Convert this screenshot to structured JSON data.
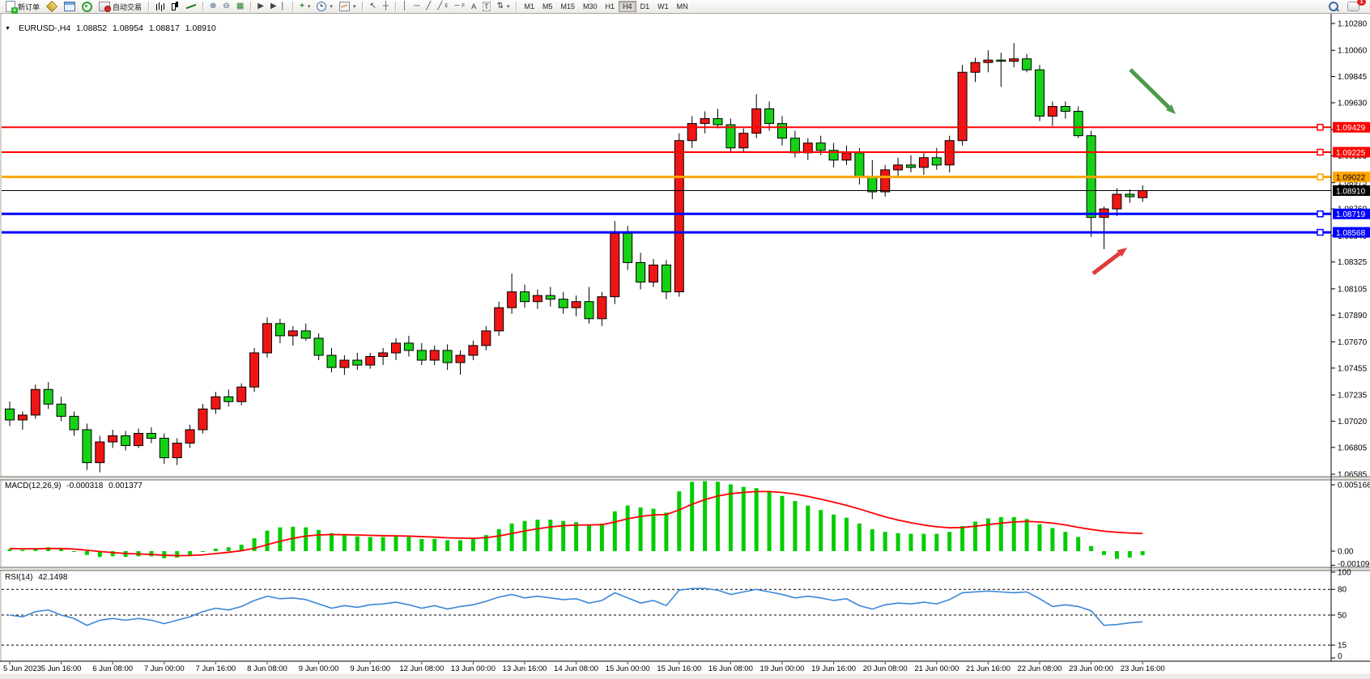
{
  "toolbar": {
    "new_order_label": "新订单",
    "autotrading_label": "自动交易",
    "tool_letters": {
      "channel": "E",
      "fibo": "F",
      "text": "A",
      "label": "T"
    },
    "timeframes": [
      "M1",
      "M5",
      "M15",
      "M30",
      "H1",
      "H4",
      "D1",
      "W1",
      "MN"
    ],
    "active_timeframe": "H4",
    "notification_count": "1"
  },
  "chart_info": {
    "symbol_period": "EURUSD-,H4",
    "open": "1.08852",
    "high": "1.08954",
    "low": "1.08817",
    "close": "1.08910"
  },
  "indicators": {
    "macd": {
      "label": "MACD(12,26,9)",
      "main_value": "-0.000318",
      "signal_value": "0.001377"
    },
    "rsi": {
      "label": "RSI(14)",
      "value": "42.1498"
    }
  },
  "chart_data": [
    {
      "type": "candlestick",
      "title": "EURUSD-,H4",
      "timeframe": "H4",
      "up_color": "#f01515",
      "down_color": "#16d216",
      "wick_color": "#000000",
      "ylim": [
        1.065,
        1.1034
      ],
      "y_ticks": [
        "1.10280",
        "1.10060",
        "1.09845",
        "1.09630",
        "1.09410",
        "1.09195",
        "1.08975",
        "1.08760",
        "1.08540",
        "1.08325",
        "1.08105",
        "1.07890",
        "1.07670",
        "1.07455",
        "1.07235",
        "1.07020",
        "1.06805",
        "1.06585"
      ],
      "x_tick_labels": [
        "5 Jun 2023",
        "5 Jun 16:00",
        "6 Jun 08:00",
        "7 Jun 00:00",
        "7 Jun 16:00",
        "8 Jun 08:00",
        "9 Jun 00:00",
        "9 Jun 16:00",
        "12 Jun 08:00",
        "13 Jun 00:00",
        "13 Jun 16:00",
        "14 Jun 08:00",
        "15 Jun 00:00",
        "15 Jun 16:00",
        "16 Jun 08:00",
        "19 Jun 00:00",
        "19 Jun 16:00",
        "20 Jun 08:00",
        "21 Jun 00:00",
        "21 Jun 16:00",
        "22 Jun 08:00",
        "23 Jun 00:00",
        "23 Jun 16:00"
      ],
      "ohlc": [
        [
          1.0712,
          1.0718,
          1.0698,
          1.0703
        ],
        [
          1.0703,
          1.071,
          1.0695,
          1.0707
        ],
        [
          1.0707,
          1.0732,
          1.0704,
          1.0728
        ],
        [
          1.0728,
          1.0734,
          1.0712,
          1.0716
        ],
        [
          1.0716,
          1.0722,
          1.0702,
          1.0706
        ],
        [
          1.0706,
          1.071,
          1.069,
          1.0695
        ],
        [
          1.0695,
          1.07,
          1.0662,
          1.0668
        ],
        [
          1.0668,
          1.069,
          1.066,
          1.0685
        ],
        [
          1.0685,
          1.0695,
          1.068,
          1.069
        ],
        [
          1.069,
          1.0694,
          1.0678,
          1.0682
        ],
        [
          1.0682,
          1.0696,
          1.068,
          1.0692
        ],
        [
          1.0692,
          1.0697,
          1.0684,
          1.0688
        ],
        [
          1.0688,
          1.0692,
          1.0667,
          1.0672
        ],
        [
          1.0672,
          1.0688,
          1.0666,
          1.0684
        ],
        [
          1.0684,
          1.0699,
          1.068,
          1.0695
        ],
        [
          1.0695,
          1.0716,
          1.0692,
          1.0712
        ],
        [
          1.0712,
          1.0726,
          1.0708,
          1.0722
        ],
        [
          1.0722,
          1.0728,
          1.0714,
          1.0718
        ],
        [
          1.0718,
          1.0733,
          1.0715,
          1.073
        ],
        [
          1.073,
          1.0762,
          1.0726,
          1.0758
        ],
        [
          1.0758,
          1.0787,
          1.0754,
          1.0782
        ],
        [
          1.0782,
          1.0786,
          1.0766,
          1.0772
        ],
        [
          1.0772,
          1.078,
          1.0764,
          1.0776
        ],
        [
          1.0776,
          1.0782,
          1.0768,
          1.077
        ],
        [
          1.077,
          1.0774,
          1.0752,
          1.0756
        ],
        [
          1.0756,
          1.0762,
          1.0742,
          1.0746
        ],
        [
          1.0746,
          1.0756,
          1.074,
          1.0752
        ],
        [
          1.0752,
          1.0758,
          1.0744,
          1.0748
        ],
        [
          1.0748,
          1.0758,
          1.0745,
          1.0755
        ],
        [
          1.0755,
          1.0762,
          1.0748,
          1.0758
        ],
        [
          1.0758,
          1.077,
          1.0752,
          1.0766
        ],
        [
          1.0766,
          1.0772,
          1.0755,
          1.076
        ],
        [
          1.076,
          1.0766,
          1.0748,
          1.0752
        ],
        [
          1.0752,
          1.0764,
          1.0748,
          1.076
        ],
        [
          1.076,
          1.0765,
          1.0744,
          1.075
        ],
        [
          1.075,
          1.076,
          1.074,
          1.0756
        ],
        [
          1.0756,
          1.0768,
          1.0752,
          1.0764
        ],
        [
          1.0764,
          1.078,
          1.076,
          1.0776
        ],
        [
          1.0776,
          1.08,
          1.0772,
          1.0795
        ],
        [
          1.0795,
          1.0823,
          1.079,
          1.0808
        ],
        [
          1.0808,
          1.0814,
          1.0795,
          1.08
        ],
        [
          1.08,
          1.081,
          1.0794,
          1.0805
        ],
        [
          1.0805,
          1.0812,
          1.0796,
          1.0802
        ],
        [
          1.0802,
          1.0808,
          1.079,
          1.0795
        ],
        [
          1.0795,
          1.0805,
          1.0788,
          1.08
        ],
        [
          1.08,
          1.0812,
          1.0782,
          1.0786
        ],
        [
          1.0786,
          1.0808,
          1.078,
          1.0804
        ],
        [
          1.0804,
          1.0866,
          1.0798,
          1.0856
        ],
        [
          1.0856,
          1.0862,
          1.0826,
          1.0832
        ],
        [
          1.0832,
          1.084,
          1.081,
          1.0816
        ],
        [
          1.0816,
          1.0835,
          1.0812,
          1.083
        ],
        [
          1.083,
          1.0834,
          1.0802,
          1.0808
        ],
        [
          1.0808,
          1.0938,
          1.0804,
          1.0932
        ],
        [
          1.0932,
          1.0952,
          1.0926,
          1.0946
        ],
        [
          1.0946,
          1.0956,
          1.0938,
          1.095
        ],
        [
          1.095,
          1.0958,
          1.0942,
          1.0945
        ],
        [
          1.0945,
          1.095,
          1.0922,
          1.0926
        ],
        [
          1.0926,
          1.0942,
          1.0922,
          1.0938
        ],
        [
          1.0938,
          1.097,
          1.0934,
          1.0958
        ],
        [
          1.0958,
          1.0964,
          1.094,
          1.0946
        ],
        [
          1.0946,
          1.0952,
          1.0928,
          1.0934
        ],
        [
          1.0934,
          1.094,
          1.0918,
          1.0922
        ],
        [
          1.0922,
          1.0934,
          1.0916,
          1.093
        ],
        [
          1.093,
          1.0936,
          1.092,
          1.0924
        ],
        [
          1.0924,
          1.093,
          1.091,
          1.0916
        ],
        [
          1.0916,
          1.0928,
          1.0912,
          1.0922
        ],
        [
          1.0922,
          1.0926,
          1.0896,
          1.0902
        ],
        [
          1.0902,
          1.0916,
          1.0884,
          1.089
        ],
        [
          1.089,
          1.0912,
          1.0886,
          1.0908
        ],
        [
          1.0908,
          1.0918,
          1.0902,
          1.0912
        ],
        [
          1.0912,
          1.092,
          1.0906,
          1.091
        ],
        [
          1.091,
          1.0922,
          1.0904,
          1.0918
        ],
        [
          1.0918,
          1.0926,
          1.0908,
          1.0912
        ],
        [
          1.0912,
          1.0936,
          1.0906,
          1.0932
        ],
        [
          1.0932,
          1.0994,
          1.0928,
          1.0988
        ],
        [
          1.0988,
          1.1,
          1.098,
          1.0996
        ],
        [
          1.0996,
          1.1006,
          1.0988,
          1.0998
        ],
        [
          1.0998,
          1.1004,
          1.0976,
          1.0997
        ],
        [
          1.0997,
          1.1012,
          1.0992,
          1.0999
        ],
        [
          1.0999,
          1.1003,
          1.0988,
          1.099
        ],
        [
          1.099,
          1.0994,
          1.0948,
          1.0952
        ],
        [
          1.0952,
          1.0964,
          1.0944,
          1.096
        ],
        [
          1.096,
          1.0964,
          1.095,
          1.0956
        ],
        [
          1.0956,
          1.096,
          1.0934,
          1.0936
        ],
        [
          1.0936,
          1.094,
          1.0853,
          1.0869
        ],
        [
          1.0869,
          1.0878,
          1.0843,
          1.0876
        ],
        [
          1.0876,
          1.0893,
          1.087,
          1.0888
        ],
        [
          1.0888,
          1.0892,
          1.0881,
          1.0886
        ],
        [
          1.08852,
          1.08954,
          1.08817,
          1.0891
        ]
      ],
      "horizontal_lines": [
        {
          "price": 1.09429,
          "label": "1.09429",
          "color": "#ff0000",
          "width": 2,
          "text_color": "#ffffff",
          "handle": true
        },
        {
          "price": 1.09225,
          "label": "1.09225",
          "color": "#ff0000",
          "width": 2,
          "text_color": "#ffffff",
          "handle": true
        },
        {
          "price": 1.09022,
          "label": "1.09022",
          "color": "#ffa500",
          "width": 3,
          "text_color": "#000000",
          "handle": true
        },
        {
          "price": 1.0891,
          "label": "1.08910",
          "color": "#000000",
          "width": 1,
          "text_color": "#ffffff",
          "handle": false
        },
        {
          "price": 1.08719,
          "label": "1.08719",
          "color": "#0000ff",
          "width": 3,
          "text_color": "#ffffff",
          "handle": true
        },
        {
          "price": 1.08568,
          "label": "1.08568",
          "color": "#0000ff",
          "width": 3,
          "text_color": "#ffffff",
          "handle": true
        }
      ],
      "annotations": [
        {
          "name": "down-arrow",
          "color": "#4a9b4a",
          "from": [
            1396,
            86
          ],
          "to": [
            1452,
            141
          ]
        },
        {
          "name": "up-arrow",
          "color": "#e03b3b",
          "from": [
            1350,
            338
          ],
          "to": [
            1392,
            306
          ]
        }
      ]
    },
    {
      "type": "bar",
      "name": "MACD(12,26,9)",
      "bar_color": "#00ce00",
      "signal_color": "#ff0000",
      "ylim": [
        -0.001095,
        0.005166
      ],
      "y_axis_labels": [
        "0.005166",
        "0.00",
        "-0.001095"
      ],
      "current_main": -0.000318,
      "current_signal": 0.001377,
      "values": [
        0.00015,
        0.0001,
        0.0002,
        0.0003,
        0.0002,
        0,
        -0.0003,
        -0.00045,
        -0.0004,
        -0.00045,
        -0.0004,
        -0.0004,
        -0.00055,
        -0.0005,
        -0.0003,
        -5e-05,
        0.0002,
        0.0003,
        0.0005,
        0.001,
        0.0016,
        0.00185,
        0.0019,
        0.00185,
        0.00165,
        0.0014,
        0.00125,
        0.00115,
        0.0011,
        0.0011,
        0.00115,
        0.0011,
        0.00095,
        0.00095,
        0.00085,
        0.00085,
        0.00095,
        0.00125,
        0.0017,
        0.00215,
        0.00235,
        0.00245,
        0.00245,
        0.00235,
        0.00225,
        0.00205,
        0.00215,
        0.0031,
        0.00355,
        0.0034,
        0.0033,
        0.003,
        0.00465,
        0.0054,
        0.00545,
        0.0054,
        0.0052,
        0.005,
        0.0049,
        0.00465,
        0.0043,
        0.0039,
        0.00355,
        0.0032,
        0.00285,
        0.0026,
        0.00215,
        0.0017,
        0.0015,
        0.0014,
        0.00135,
        0.00135,
        0.00135,
        0.0015,
        0.00195,
        0.0023,
        0.00255,
        0.00265,
        0.00265,
        0.0025,
        0.0021,
        0.0018,
        0.0015,
        0.0011,
        0.0004,
        -0.0003,
        -0.0006,
        -0.0005,
        -0.000318
      ],
      "signal": [
        0.0002,
        0.00018,
        0.00018,
        0.0002,
        0.0002,
        0.00016,
        7e-05,
        -3e-05,
        -0.00011,
        -0.00018,
        -0.00022,
        -0.00026,
        -0.00032,
        -0.00035,
        -0.00034,
        -0.00029,
        -0.00019,
        -9e-05,
        3e-05,
        0.00022,
        0.0005,
        0.00077,
        0.001,
        0.00117,
        0.00126,
        0.00129,
        0.00128,
        0.00126,
        0.00123,
        0.0012,
        0.00119,
        0.00117,
        0.00113,
        0.00109,
        0.00104,
        0.00101,
        0.001,
        0.00105,
        0.00118,
        0.00137,
        0.00157,
        0.00174,
        0.00188,
        0.00198,
        0.00203,
        0.00204,
        0.00206,
        0.00227,
        0.00252,
        0.0027,
        0.00282,
        0.00285,
        0.00321,
        0.00365,
        0.00401,
        0.00429,
        0.00447,
        0.00457,
        0.00464,
        0.00464,
        0.00457,
        0.00444,
        0.00426,
        0.00405,
        0.00381,
        0.00357,
        0.00328,
        0.00297,
        0.00267,
        0.00242,
        0.00221,
        0.00203,
        0.0019,
        0.00182,
        0.00184,
        0.00194,
        0.00206,
        0.00218,
        0.00227,
        0.00232,
        0.00227,
        0.00218,
        0.00204,
        0.00185,
        0.00169,
        0.00155,
        0.00147,
        0.00141,
        0.001377
      ]
    },
    {
      "type": "line",
      "name": "RSI(14)",
      "line_color": "#3a87d9",
      "level_color": "#000000",
      "ylim": [
        0,
        100
      ],
      "levels": [
        80,
        50,
        15
      ],
      "y_axis_labels": [
        "100",
        "80",
        "50",
        "15",
        "0"
      ],
      "current": 42.1498,
      "values": [
        50,
        48,
        54,
        56,
        50,
        46,
        38,
        44,
        46,
        44,
        46,
        44,
        40,
        44,
        48,
        54,
        58,
        56,
        60,
        67,
        72,
        69,
        70,
        68,
        63,
        58,
        61,
        59,
        62,
        63,
        65,
        62,
        58,
        61,
        57,
        60,
        62,
        66,
        71,
        74,
        70,
        72,
        70,
        68,
        69,
        64,
        67,
        76,
        70,
        64,
        67,
        61,
        79,
        81,
        81,
        79,
        74,
        77,
        80,
        77,
        74,
        70,
        72,
        70,
        67,
        69,
        61,
        57,
        62,
        64,
        63,
        65,
        63,
        68,
        76,
        77,
        78,
        77,
        76,
        77,
        69,
        60,
        62,
        60,
        55,
        38,
        39,
        41,
        42.1498
      ]
    }
  ]
}
